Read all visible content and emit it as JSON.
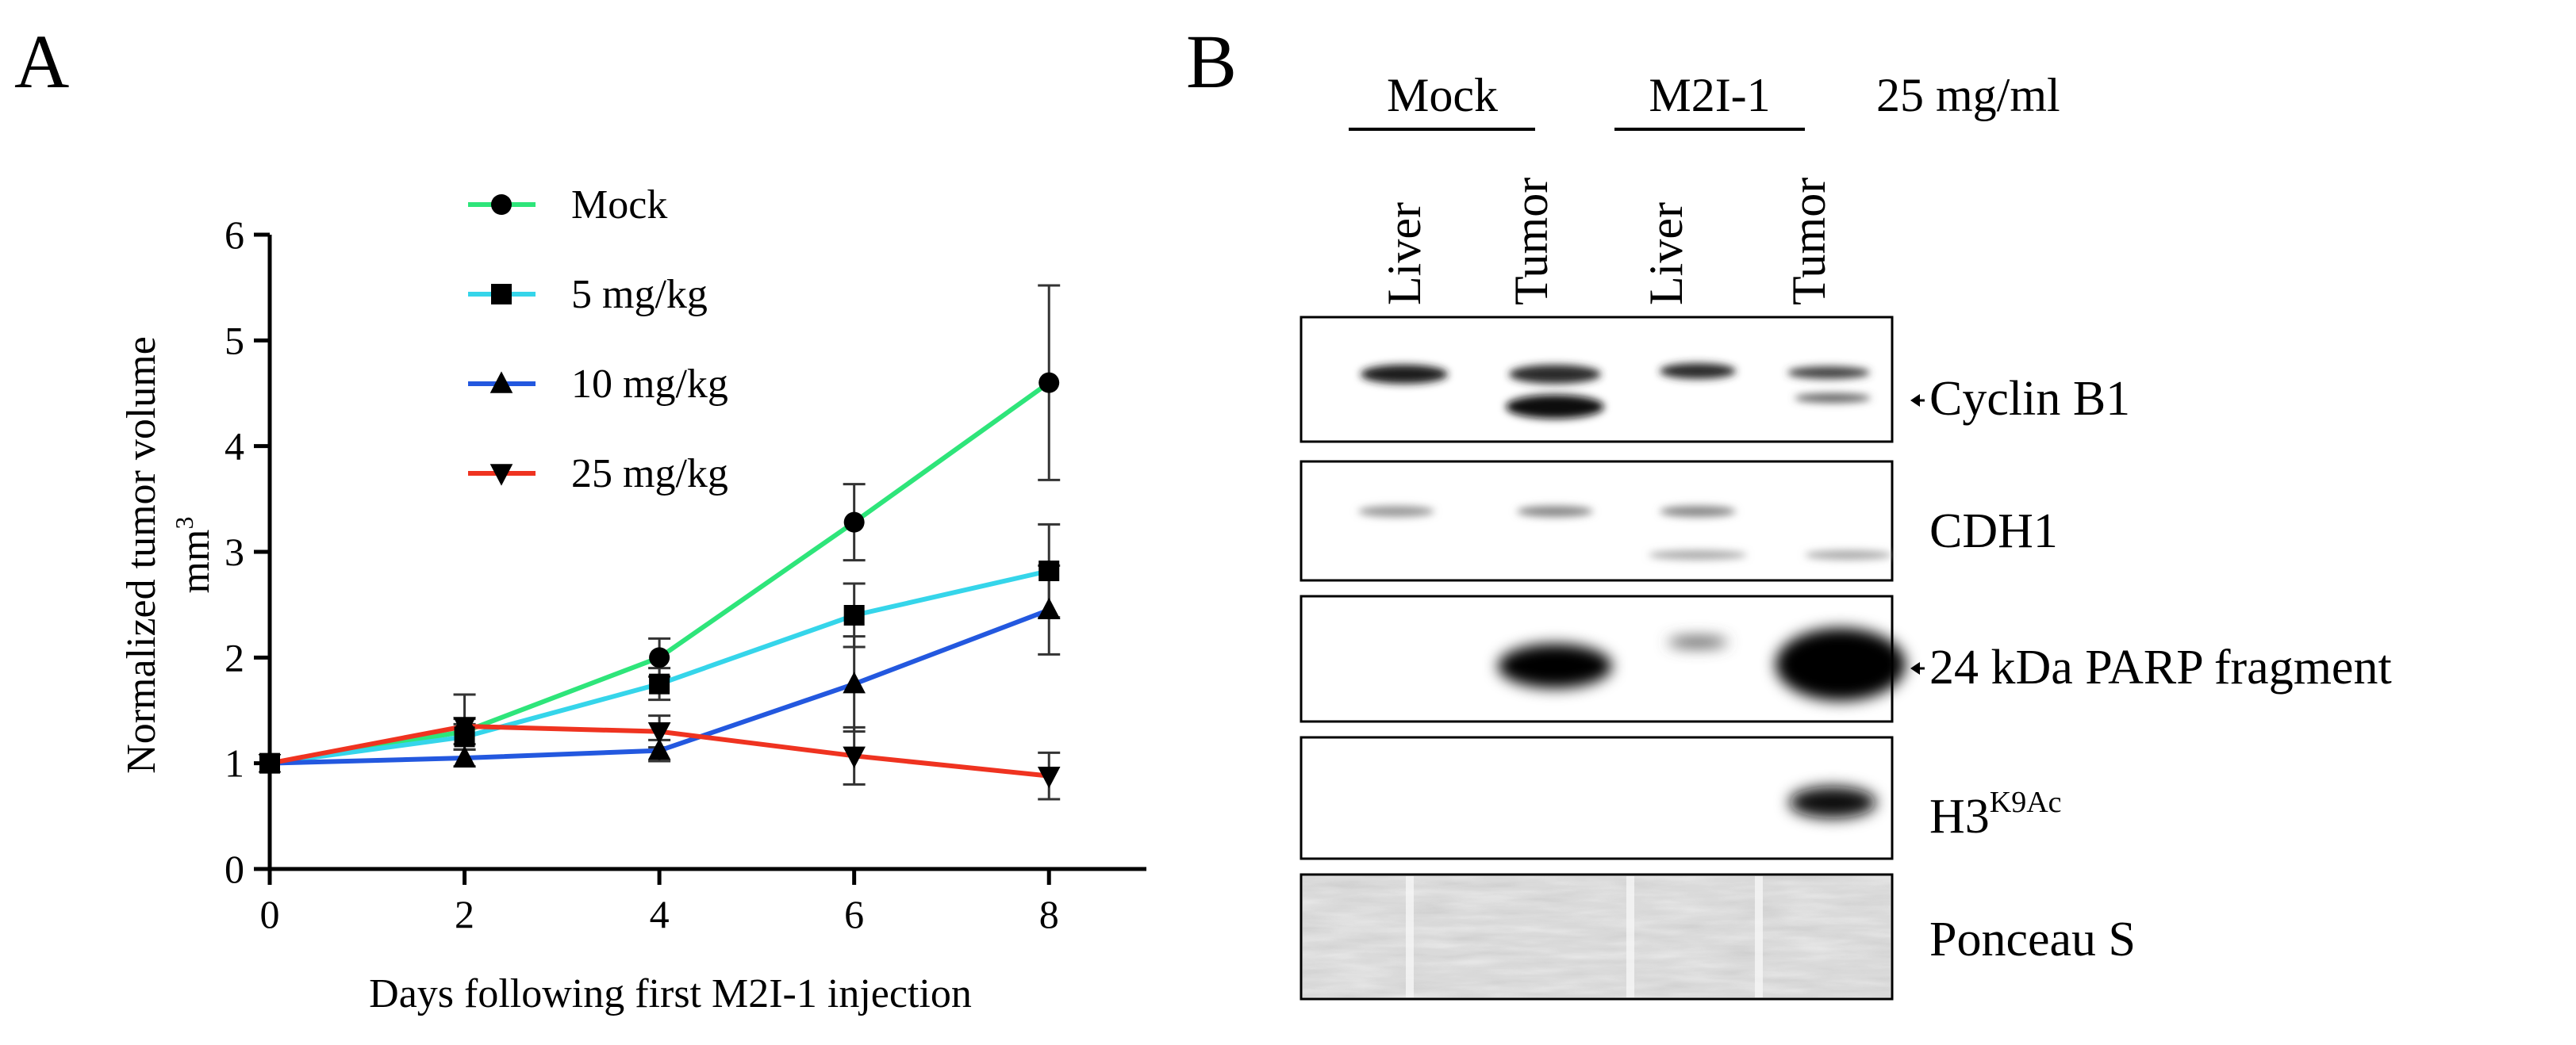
{
  "panel_a": {
    "label": "A",
    "chart_data": {
      "type": "line",
      "xlabel": "Days following first M2I-1 injection",
      "ylabel": "Normalized tumor volume",
      "ylabel_unit": "mm",
      "ylabel_unit_superscript": "3",
      "xlim": [
        0,
        9
      ],
      "ylim": [
        0,
        6
      ],
      "xticks": [
        0,
        2,
        4,
        6,
        8
      ],
      "yticks": [
        0,
        1,
        2,
        3,
        4,
        5,
        6
      ],
      "x": [
        0,
        2,
        4,
        6,
        8
      ],
      "grid": false,
      "legend_position": "top-center",
      "series": [
        {
          "name": "Mock",
          "marker": "circle",
          "color": "#2ee57a",
          "values": [
            1.0,
            1.3,
            2.0,
            3.28,
            4.6
          ],
          "errors": [
            0.03,
            0.12,
            0.18,
            0.36,
            0.92
          ]
        },
        {
          "name": "5 mg/kg",
          "marker": "square",
          "color": "#35d5ea",
          "values": [
            1.0,
            1.25,
            1.75,
            2.4,
            2.82
          ],
          "errors": [
            0.03,
            0.12,
            0.15,
            0.3,
            0.44
          ]
        },
        {
          "name": "10 mg/kg",
          "marker": "triangle-up",
          "color": "#2358df",
          "values": [
            1.0,
            1.05,
            1.12,
            1.75,
            2.45
          ],
          "errors": [
            0.03,
            0.08,
            0.1,
            0.45,
            0.42
          ]
        },
        {
          "name": "25 mg/kg",
          "marker": "triangle-down",
          "color": "#ef3320",
          "values": [
            1.0,
            1.35,
            1.3,
            1.07,
            0.88
          ],
          "errors": [
            0.03,
            0.3,
            0.15,
            0.27,
            0.22
          ]
        }
      ]
    }
  },
  "panel_b": {
    "label": "B",
    "groups": [
      {
        "name": "Mock"
      },
      {
        "name": "M2I-1"
      }
    ],
    "dose_label": "25 mg/ml",
    "lanes": [
      "Liver",
      "Tumor",
      "Liver",
      "Tumor"
    ],
    "blots": [
      {
        "name": "Cyclin B1",
        "arrow": true
      },
      {
        "name": "CDH1",
        "arrow": false
      },
      {
        "name": "24 kDa PARP fragment",
        "arrow": true
      },
      {
        "name": "H3",
        "superscript": "K9Ac",
        "arrow": false
      },
      {
        "name": "Ponceau S",
        "arrow": false
      }
    ]
  }
}
